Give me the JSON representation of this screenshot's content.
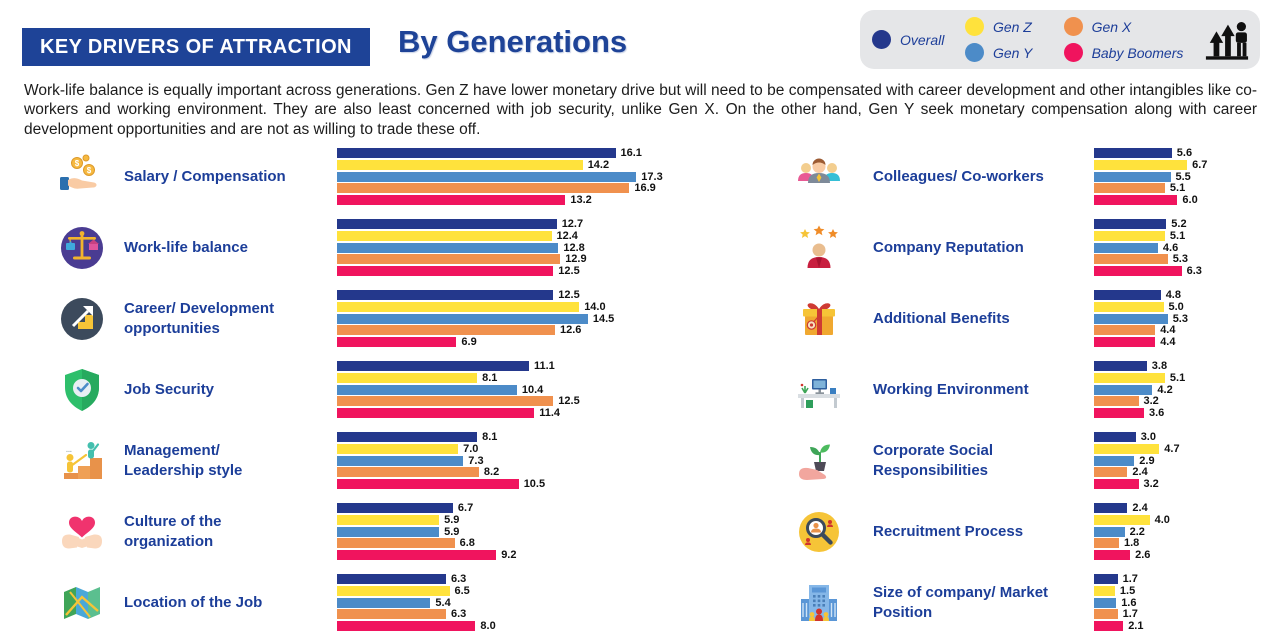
{
  "header": {
    "title": "KEY DRIVERS OF ATTRACTION",
    "subtitle": "By Generations"
  },
  "description": "Work-life balance is equally important across generations. Gen Z have lower monetary drive but will need to be compensated with career development and other intangibles like co-workers and working environment. They are also least concerned with job security, unlike Gen X. On the other hand, Gen Y seek monetary compensation along with career development opportunities and are not as willing to trade these off.",
  "legend": {
    "column_layout": [
      [
        0
      ],
      [
        1,
        2
      ],
      [
        3,
        4
      ]
    ],
    "icon": "growth-people-icon"
  },
  "chart_data": {
    "type": "bar",
    "orientation": "horizontal",
    "grid": false,
    "legend_position": "top-right",
    "series": [
      {
        "name": "Overall",
        "color": "#24388C"
      },
      {
        "name": "Gen Z",
        "color": "#FFE23C"
      },
      {
        "name": "Gen Y",
        "color": "#4C8BC8"
      },
      {
        "name": "Gen X",
        "color": "#F0914E"
      },
      {
        "name": "Baby Boomers",
        "color": "#F0145E"
      }
    ],
    "columns": {
      "left": {
        "xlim": [
          0,
          18.5
        ],
        "rows": [
          {
            "category": "Salary / Compensation",
            "lines": [
              "Salary / Compensation"
            ],
            "icon": "salary-icon",
            "values": [
              16.1,
              14.2,
              17.3,
              16.9,
              13.2
            ]
          },
          {
            "category": "Work-life balance",
            "lines": [
              "Work-life balance"
            ],
            "icon": "work-life-balance-icon",
            "values": [
              12.7,
              12.4,
              12.8,
              12.9,
              12.5
            ]
          },
          {
            "category": "Career/ Development opportunities",
            "lines": [
              "Career/ Development",
              "opportunities"
            ],
            "icon": "career-development-icon",
            "values": [
              12.5,
              14.0,
              14.5,
              12.6,
              6.9
            ]
          },
          {
            "category": "Job Security",
            "lines": [
              "Job Security"
            ],
            "icon": "job-security-icon",
            "values": [
              11.1,
              8.1,
              10.4,
              12.5,
              11.4
            ]
          },
          {
            "category": "Management/ Leadership style",
            "lines": [
              "Management/",
              "Leadership style"
            ],
            "icon": "management-icon",
            "values": [
              8.1,
              7.0,
              7.3,
              8.2,
              10.5
            ]
          },
          {
            "category": "Culture of the organization",
            "lines": [
              "Culture of the",
              "organization"
            ],
            "icon": "culture-icon",
            "values": [
              6.7,
              5.9,
              5.9,
              6.8,
              9.2
            ]
          },
          {
            "category": "Location of the Job",
            "lines": [
              "Location of the Job"
            ],
            "icon": "location-icon",
            "values": [
              6.3,
              6.5,
              5.4,
              6.3,
              8.0
            ]
          }
        ]
      },
      "right": {
        "xlim": [
          0,
          7.5
        ],
        "rows": [
          {
            "category": "Colleagues/ Co-workers",
            "lines": [
              "Colleagues/ Co-workers"
            ],
            "icon": "colleagues-icon",
            "values": [
              5.6,
              6.7,
              5.5,
              5.1,
              6.0
            ]
          },
          {
            "category": "Company Reputation",
            "lines": [
              "Company Reputation"
            ],
            "icon": "company-reputation-icon",
            "values": [
              5.2,
              5.1,
              4.6,
              5.3,
              6.3
            ]
          },
          {
            "category": "Additional Benefits",
            "lines": [
              "Additional Benefits"
            ],
            "icon": "additional-benefits-icon",
            "values": [
              4.8,
              5.0,
              5.3,
              4.4,
              4.4
            ]
          },
          {
            "category": "Working Environment",
            "lines": [
              "Working Environment"
            ],
            "icon": "working-environment-icon",
            "values": [
              3.8,
              5.1,
              4.2,
              3.2,
              3.6
            ]
          },
          {
            "category": "Corporate Social Responsibilities",
            "lines": [
              "Corporate Social",
              "Responsibilities"
            ],
            "icon": "csr-icon",
            "values": [
              3.0,
              4.7,
              2.9,
              2.4,
              3.2
            ]
          },
          {
            "category": "Recruitment Process",
            "lines": [
              "Recruitment Process"
            ],
            "icon": "recruitment-icon",
            "values": [
              2.4,
              4.0,
              2.2,
              1.8,
              2.6
            ]
          },
          {
            "category": "Size of company/ Market Position",
            "lines": [
              "Size of company/ Market",
              "Position"
            ],
            "icon": "size-of-company-icon",
            "values": [
              1.7,
              1.5,
              1.6,
              1.7,
              2.1
            ]
          }
        ]
      }
    }
  }
}
